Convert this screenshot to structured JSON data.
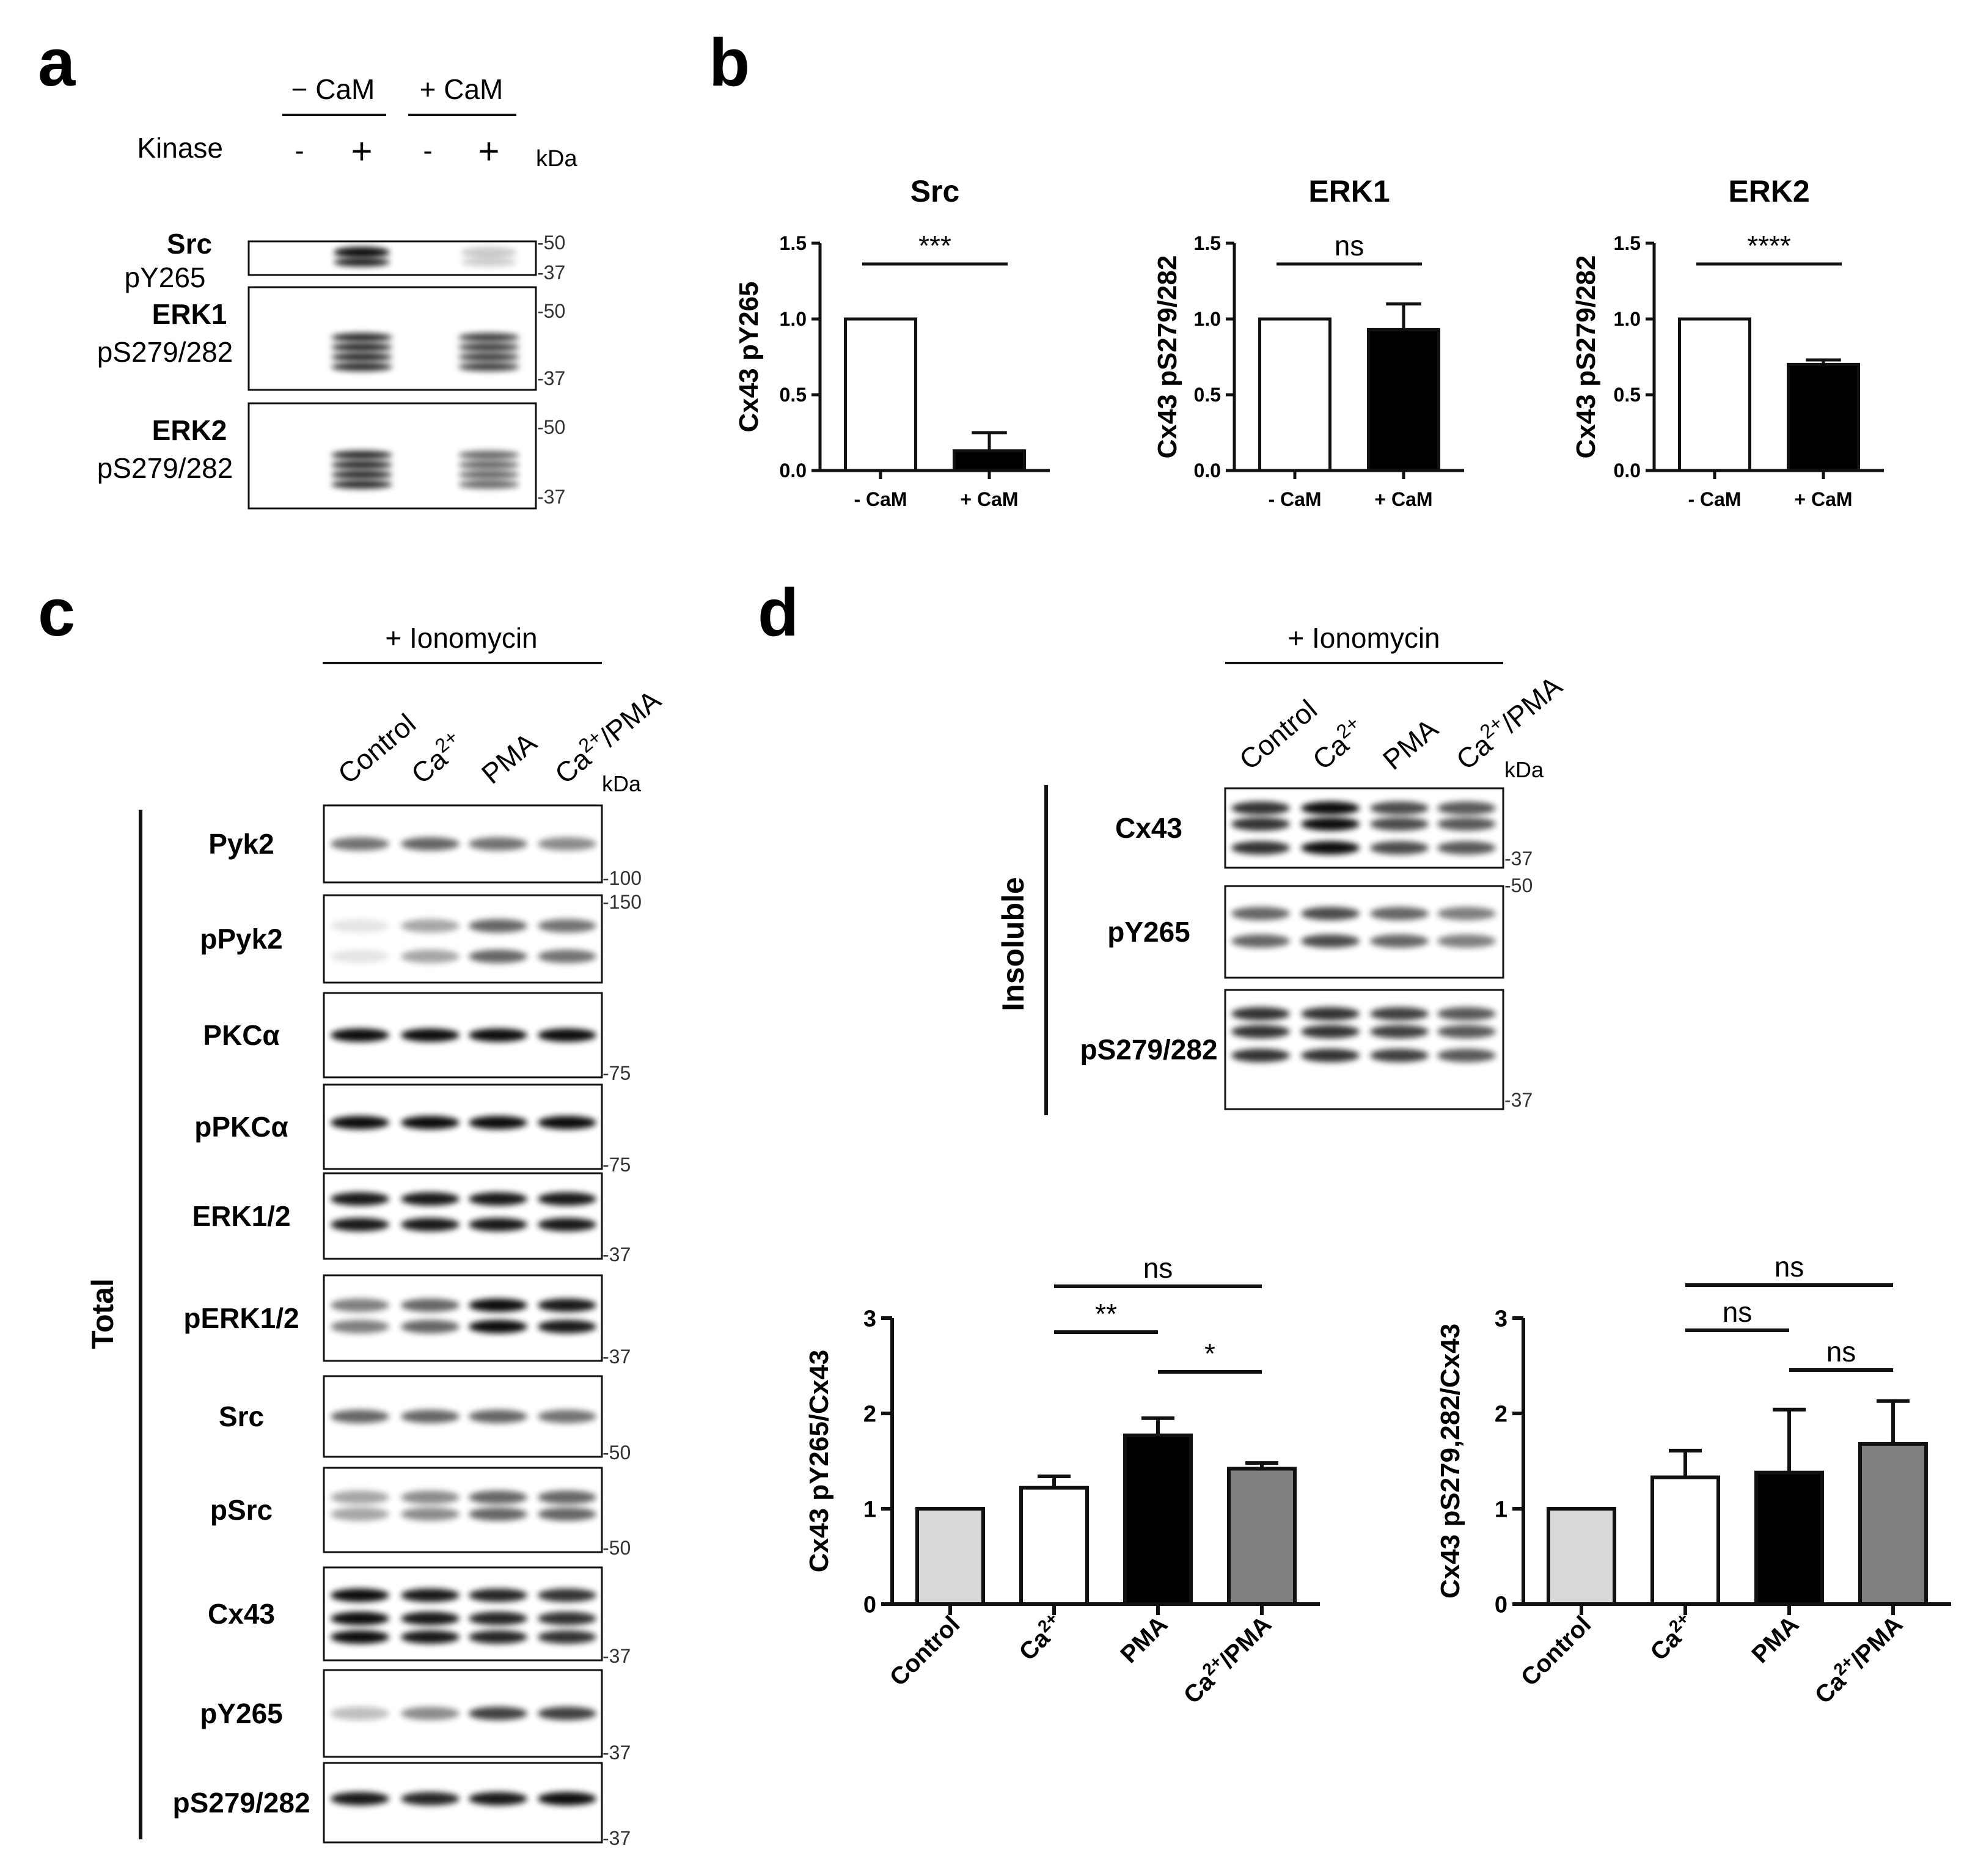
{
  "figure_labels": {
    "a": "a",
    "b": "b",
    "c": "c",
    "d": "d"
  },
  "panel_a": {
    "groups": [
      "− CaM",
      "+ CaM"
    ],
    "kinase_label": "Kinase",
    "kinase_states": [
      "-",
      "+",
      "-",
      "+"
    ],
    "kda": "kDa",
    "blots": [
      {
        "name": "Src",
        "site": "pY265",
        "markers": [
          "50",
          "37"
        ],
        "intensity": [
          0,
          1.0,
          0,
          0.22
        ]
      },
      {
        "name": "ERK1",
        "site": "pS279/282",
        "markers": [
          "50",
          "37"
        ],
        "intensity": [
          0,
          1.0,
          0,
          0.9
        ]
      },
      {
        "name": "ERK2",
        "site": "pS279/282",
        "markers": [
          "50",
          "37"
        ],
        "intensity": [
          0,
          1.0,
          0,
          0.7
        ]
      }
    ]
  },
  "panel_c": {
    "treatment": "+ Ionomycin",
    "lanes": [
      "Control",
      "Ca2+",
      "PMA",
      "Ca2+/PMA"
    ],
    "kda": "kDa",
    "group_label": "Total",
    "blots": [
      {
        "label": "Pyk2",
        "marker": "100"
      },
      {
        "label": "pPyk2",
        "marker": "150"
      },
      {
        "label": "PKCα",
        "marker": "75"
      },
      {
        "label": "pPKCα",
        "marker": "75"
      },
      {
        "label": "ERK1/2",
        "marker": "37"
      },
      {
        "label": "pERK1/2",
        "marker": "37"
      },
      {
        "label": "Src",
        "marker": "50"
      },
      {
        "label": "pSrc",
        "marker": "50"
      },
      {
        "label": "Cx43",
        "marker": "37"
      },
      {
        "label": "pY265",
        "marker": "37"
      },
      {
        "label": "pS279/282",
        "marker": "37"
      }
    ]
  },
  "panel_d_blots": {
    "treatment": "+ Ionomycin",
    "lanes": [
      "Control",
      "Ca2+",
      "PMA",
      "Ca2+/PMA"
    ],
    "kda": "kDa",
    "group_label": "Insoluble",
    "blots": [
      {
        "label": "Cx43",
        "markers": [
          "37"
        ]
      },
      {
        "label": "pY265",
        "markers": [
          "50"
        ]
      },
      {
        "label": "pS279/282",
        "markers": [
          "37"
        ]
      }
    ]
  },
  "chart_data": [
    {
      "type": "bar",
      "title": "Src",
      "ylabel": "Cx43 pY265",
      "categories": [
        "- CaM",
        "+ CaM"
      ],
      "values": [
        1.0,
        0.13
      ],
      "errors": [
        0,
        0.12
      ],
      "colors": [
        "#ffffff",
        "#000000"
      ],
      "ylim": [
        0,
        1.5
      ],
      "yticks": [
        "0.0",
        "0.5",
        "1.0",
        "1.5"
      ],
      "significance": [
        {
          "from": 0,
          "to": 1,
          "label": "***"
        }
      ]
    },
    {
      "type": "bar",
      "title": "ERK1",
      "ylabel": "Cx43 pS279/282",
      "categories": [
        "- CaM",
        "+ CaM"
      ],
      "values": [
        1.0,
        0.93
      ],
      "errors": [
        0,
        0.17
      ],
      "colors": [
        "#ffffff",
        "#000000"
      ],
      "ylim": [
        0,
        1.5
      ],
      "yticks": [
        "0.0",
        "0.5",
        "1.0",
        "1.5"
      ],
      "significance": [
        {
          "from": 0,
          "to": 1,
          "label": "ns"
        }
      ]
    },
    {
      "type": "bar",
      "title": "ERK2",
      "ylabel": "Cx43 pS279/282",
      "categories": [
        "- CaM",
        "+ CaM"
      ],
      "values": [
        1.0,
        0.7
      ],
      "errors": [
        0,
        0.03
      ],
      "colors": [
        "#ffffff",
        "#000000"
      ],
      "ylim": [
        0,
        1.5
      ],
      "yticks": [
        "0.0",
        "0.5",
        "1.0",
        "1.5"
      ],
      "significance": [
        {
          "from": 0,
          "to": 1,
          "label": "****"
        }
      ]
    },
    {
      "type": "bar",
      "title": "",
      "ylabel": "Cx43 pY265/Cx43",
      "categories": [
        "Control",
        "Ca2+",
        "PMA",
        "Ca2+/PMA"
      ],
      "values": [
        1.0,
        1.22,
        1.77,
        1.42
      ],
      "errors": [
        0,
        0.12,
        0.18,
        0.06
      ],
      "colors": [
        "#d9d9d9",
        "#ffffff",
        "#000000",
        "#808080"
      ],
      "ylim": [
        0,
        3
      ],
      "yticks": [
        "0",
        "1",
        "2",
        "3"
      ],
      "significance": [
        {
          "from": 1,
          "to": 3,
          "label": "ns"
        },
        {
          "from": 1,
          "to": 2,
          "label": "**"
        },
        {
          "from": 2,
          "to": 3,
          "label": "*"
        }
      ]
    },
    {
      "type": "bar",
      "title": "",
      "ylabel": "Cx43 pS279,282/Cx43",
      "categories": [
        "Control",
        "Ca2+",
        "PMA",
        "Ca2+/PMA"
      ],
      "values": [
        1.0,
        1.33,
        1.38,
        1.68
      ],
      "errors": [
        0,
        0.28,
        0.66,
        0.45
      ],
      "colors": [
        "#d9d9d9",
        "#ffffff",
        "#000000",
        "#808080"
      ],
      "ylim": [
        0,
        3
      ],
      "yticks": [
        "0",
        "1",
        "2",
        "3"
      ],
      "significance": [
        {
          "from": 1,
          "to": 3,
          "label": "ns"
        },
        {
          "from": 1,
          "to": 2,
          "label": "ns"
        },
        {
          "from": 2,
          "to": 3,
          "label": "ns"
        }
      ]
    }
  ]
}
